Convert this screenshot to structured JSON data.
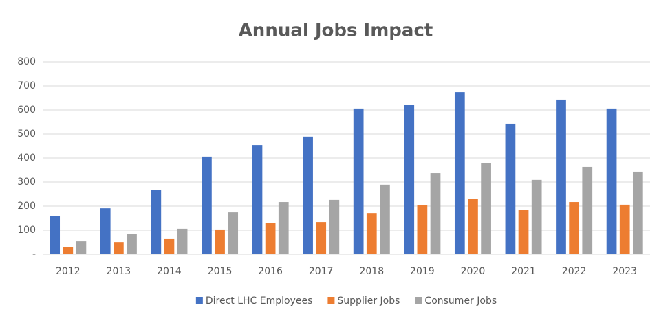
{
  "chart_data": {
    "type": "bar",
    "title": "Annual Jobs Impact",
    "categories": [
      "2012",
      "2013",
      "2014",
      "2015",
      "2016",
      "2017",
      "2018",
      "2019",
      "2020",
      "2021",
      "2022",
      "2023"
    ],
    "series": [
      {
        "name": "Direct LHC Employees",
        "color": "#4472c4",
        "values": [
          160,
          191,
          266,
          406,
          454,
          489,
          606,
          620,
          674,
          543,
          643,
          606
        ]
      },
      {
        "name": "Supplier Jobs",
        "color": "#ed7d31",
        "values": [
          31,
          51,
          63,
          103,
          131,
          134,
          171,
          203,
          229,
          183,
          217,
          206
        ]
      },
      {
        "name": "Consumer Jobs",
        "color": "#a5a5a5",
        "values": [
          54,
          83,
          106,
          174,
          217,
          226,
          289,
          337,
          380,
          309,
          363,
          343
        ]
      }
    ],
    "ylim": [
      0,
      800
    ],
    "yticks": [
      {
        "value": 0,
        "label": "-"
      },
      100,
      200,
      300,
      400,
      500,
      600,
      700,
      800
    ],
    "grid": true,
    "legend": "bottom"
  }
}
